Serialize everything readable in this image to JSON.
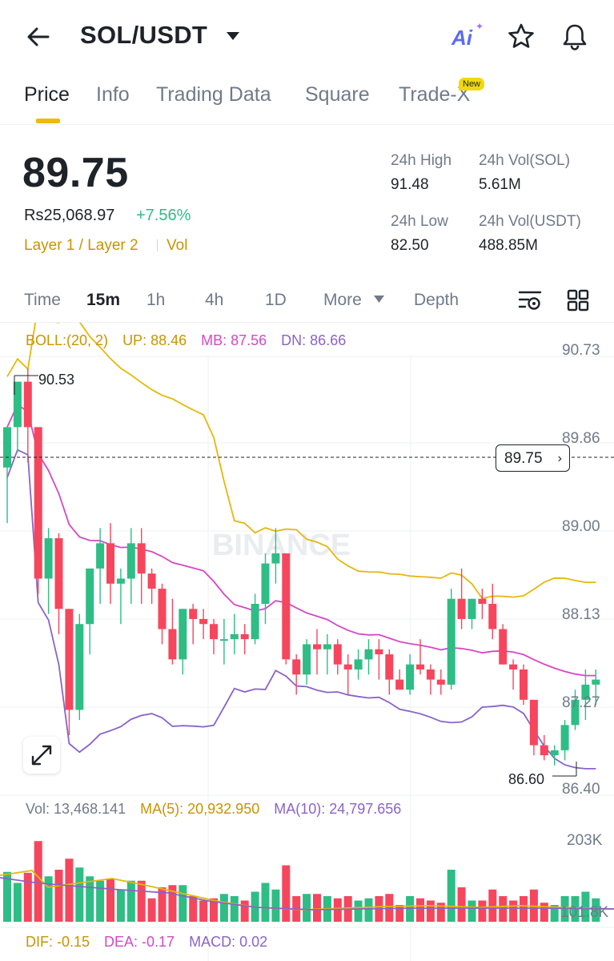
{
  "header": {
    "pair": "SOL/USDT",
    "icons": [
      "back-arrow-icon",
      "caret-down-icon",
      "ai-icon",
      "star-icon",
      "bell-icon"
    ],
    "ai_label": "Ai"
  },
  "tabs": [
    {
      "label": "Price",
      "active": true
    },
    {
      "label": "Info",
      "active": false
    },
    {
      "label": "Trading Data",
      "active": false
    },
    {
      "label": "Square",
      "active": false
    },
    {
      "label": "Trade-X",
      "active": false
    }
  ],
  "new_badge": "New",
  "ticker": {
    "price": "89.75",
    "local_price": "Rs25,068.97",
    "change": "+7.56%",
    "tag1": "Layer 1 / Layer 2",
    "tag2": "Vol",
    "high_label": "24h High",
    "high_value": "91.48",
    "vol_sol_label": "24h Vol(SOL)",
    "vol_sol_value": "5.61M",
    "low_label": "24h Low",
    "low_value": "82.50",
    "vol_usdt_label": "24h Vol(USDT)",
    "vol_usdt_value": "488.85M"
  },
  "intervals": [
    {
      "label": "Time",
      "active": false
    },
    {
      "label": "15m",
      "active": true
    },
    {
      "label": "1h",
      "active": false
    },
    {
      "label": "4h",
      "active": false
    },
    {
      "label": "1D",
      "active": false
    },
    {
      "label": "More",
      "active": false
    },
    {
      "label": "Depth",
      "active": false
    }
  ],
  "indicators": {
    "boll": "BOLL:(20, 2)",
    "up": "UP: 88.46",
    "mb": "MB: 87.56",
    "dn": "DN: 86.66",
    "vol": "Vol: 13,468.141",
    "ma5": "MA(5): 20,932.950",
    "ma10": "MA(10): 24,797.656",
    "dif": "DIF: -0.15",
    "dea": "DEA: -0.17",
    "macd": "MACD: 0.02"
  },
  "price_axis": [
    "90.73",
    "89.86",
    "89.00",
    "88.13",
    "87.27",
    "86.40"
  ],
  "volume_axis": [
    "203K",
    "101.8K"
  ],
  "current_price_tag": "89.75",
  "high_marker": "90.53",
  "low_marker": "86.60",
  "watermark": "BINANCE",
  "colors": {
    "up": "#2ebd85",
    "down": "#f6465d",
    "accent": "#f0b90b",
    "boll_up": "#e5b80b",
    "boll_mb": "#d548c4",
    "boll_dn": "#8a63c9"
  },
  "chart_data": {
    "type": "candlestick",
    "price_range": [
      86.4,
      90.73
    ],
    "candles": [
      [
        89.55,
        89.95,
        89.0,
        89.95
      ],
      [
        89.95,
        90.4,
        89.7,
        90.4
      ],
      [
        90.4,
        90.53,
        89.6,
        89.95
      ],
      [
        89.95,
        89.95,
        88.3,
        88.45
      ],
      [
        88.45,
        88.95,
        88.1,
        88.85
      ],
      [
        88.85,
        88.9,
        87.9,
        88.15
      ],
      [
        88.15,
        88.15,
        86.9,
        87.15
      ],
      [
        87.15,
        88.1,
        87.05,
        88.0
      ],
      [
        88.0,
        88.55,
        87.7,
        88.55
      ],
      [
        88.55,
        88.95,
        88.2,
        88.8
      ],
      [
        88.8,
        89.0,
        88.2,
        88.4
      ],
      [
        88.4,
        88.55,
        88.0,
        88.45
      ],
      [
        88.45,
        88.95,
        88.2,
        88.8
      ],
      [
        88.8,
        88.95,
        88.2,
        88.5
      ],
      [
        88.5,
        88.55,
        88.2,
        88.35
      ],
      [
        88.35,
        88.4,
        87.8,
        87.95
      ],
      [
        87.95,
        88.25,
        87.6,
        87.65
      ],
      [
        87.65,
        88.15,
        87.5,
        88.15
      ],
      [
        88.15,
        88.2,
        87.8,
        88.05
      ],
      [
        88.05,
        88.15,
        87.85,
        88.0
      ],
      [
        88.0,
        88.05,
        87.7,
        87.85
      ],
      [
        87.85,
        88.05,
        87.6,
        87.85
      ],
      [
        87.85,
        88.1,
        87.7,
        87.9
      ],
      [
        87.9,
        88.0,
        87.7,
        87.85
      ],
      [
        87.85,
        88.3,
        87.8,
        88.2
      ],
      [
        88.2,
        88.7,
        88.0,
        88.6
      ],
      [
        88.6,
        88.95,
        88.4,
        88.7
      ],
      [
        88.7,
        88.7,
        87.6,
        87.65
      ],
      [
        87.65,
        87.7,
        87.3,
        87.5
      ],
      [
        87.5,
        87.85,
        87.4,
        87.8
      ],
      [
        87.8,
        87.95,
        87.5,
        87.75
      ],
      [
        87.75,
        87.9,
        87.5,
        87.8
      ],
      [
        87.8,
        87.85,
        87.5,
        87.6
      ],
      [
        87.6,
        87.7,
        87.3,
        87.55
      ],
      [
        87.55,
        87.75,
        87.45,
        87.65
      ],
      [
        87.65,
        87.85,
        87.5,
        87.75
      ],
      [
        87.75,
        87.85,
        87.45,
        87.7
      ],
      [
        87.7,
        87.75,
        87.3,
        87.45
      ],
      [
        87.45,
        87.55,
        87.35,
        87.35
      ],
      [
        87.35,
        87.7,
        87.3,
        87.6
      ],
      [
        87.6,
        87.85,
        87.5,
        87.55
      ],
      [
        87.55,
        87.6,
        87.3,
        87.45
      ],
      [
        87.45,
        87.55,
        87.3,
        87.4
      ],
      [
        87.4,
        88.35,
        87.35,
        88.25
      ],
      [
        88.25,
        88.55,
        87.95,
        88.05
      ],
      [
        88.05,
        88.25,
        87.95,
        88.25
      ],
      [
        88.25,
        88.35,
        88.05,
        88.2
      ],
      [
        88.2,
        88.4,
        87.85,
        87.95
      ],
      [
        87.95,
        88.0,
        87.6,
        87.6
      ],
      [
        87.6,
        87.65,
        87.35,
        87.55
      ],
      [
        87.55,
        87.6,
        87.2,
        87.25
      ],
      [
        87.25,
        87.25,
        86.7,
        86.8
      ],
      [
        86.8,
        86.9,
        86.65,
        86.7
      ],
      [
        86.7,
        86.8,
        86.6,
        86.75
      ],
      [
        86.75,
        87.05,
        86.65,
        87.0
      ],
      [
        87.0,
        87.35,
        86.95,
        87.25
      ],
      [
        87.25,
        87.55,
        87.05,
        87.4
      ],
      [
        87.4,
        87.55,
        87.2,
        87.45
      ]
    ]
  }
}
